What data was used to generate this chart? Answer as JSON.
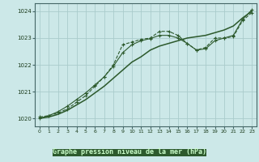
{
  "title": "Graphe pression niveau de la mer (hPa)",
  "bg_color": "#cce8e8",
  "plot_bg_color": "#cce8e8",
  "label_bg_color": "#2d6e2d",
  "grid_color": "#aacccc",
  "line_color": "#2d5a2d",
  "xlim": [
    -0.5,
    23.5
  ],
  "ylim": [
    1019.7,
    1024.3
  ],
  "yticks": [
    1020,
    1021,
    1022,
    1023,
    1024
  ],
  "xticks": [
    0,
    1,
    2,
    3,
    4,
    5,
    6,
    7,
    8,
    9,
    10,
    11,
    12,
    13,
    14,
    15,
    16,
    17,
    18,
    19,
    20,
    21,
    22,
    23
  ],
  "series1_x": [
    0,
    1,
    2,
    3,
    4,
    5,
    6,
    7,
    8,
    9,
    10,
    11,
    12,
    13,
    14,
    15,
    16,
    17,
    18,
    19,
    20,
    21,
    22,
    23
  ],
  "series1_y": [
    1020.05,
    1020.1,
    1020.2,
    1020.35,
    1020.6,
    1020.85,
    1021.2,
    1021.55,
    1022.0,
    1022.75,
    1022.85,
    1022.95,
    1023.0,
    1023.25,
    1023.25,
    1023.1,
    1022.8,
    1022.55,
    1022.65,
    1023.0,
    1023.0,
    1023.05,
    1023.65,
    1023.95
  ],
  "series2_x": [
    0,
    1,
    2,
    3,
    4,
    5,
    6,
    7,
    8,
    9,
    10,
    11,
    12,
    13,
    14,
    15,
    16,
    17,
    18,
    19,
    20,
    21,
    22,
    23
  ],
  "series2_y": [
    1020.0,
    1020.05,
    1020.15,
    1020.3,
    1020.5,
    1020.7,
    1020.95,
    1021.2,
    1021.5,
    1021.8,
    1022.1,
    1022.3,
    1022.55,
    1022.7,
    1022.8,
    1022.9,
    1023.0,
    1023.05,
    1023.1,
    1023.2,
    1023.3,
    1023.45,
    1023.75,
    1024.0
  ],
  "series3_x": [
    0,
    1,
    2,
    3,
    4,
    5,
    6,
    7,
    8,
    9,
    10,
    11,
    12,
    13,
    14,
    15,
    16,
    17,
    18,
    19,
    20,
    21,
    22,
    23
  ],
  "series3_y": [
    1020.0,
    1020.1,
    1020.25,
    1020.45,
    1020.7,
    1020.95,
    1021.25,
    1021.55,
    1021.95,
    1022.45,
    1022.75,
    1022.9,
    1022.98,
    1023.1,
    1023.1,
    1023.0,
    1022.8,
    1022.55,
    1022.6,
    1022.9,
    1023.0,
    1023.1,
    1023.7,
    1024.05
  ]
}
